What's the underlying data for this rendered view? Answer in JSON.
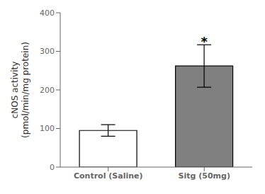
{
  "chart_data": {
    "type": "bar",
    "categories": [
      "Control (Saline)",
      "Sitg (50mg)"
    ],
    "values": [
      95,
      262
    ],
    "errors": [
      15,
      55
    ],
    "colors": [
      "#ffffff",
      "#808080"
    ],
    "ylabel": "cNOS activity\n(pmol/min/mg protein)",
    "ylim": [
      0,
      400
    ],
    "yticks": [
      0,
      100,
      200,
      300,
      400
    ],
    "grid": false,
    "annotations": [
      {
        "text": "*",
        "category": "Sitg (50mg)",
        "y": 328
      }
    ]
  }
}
